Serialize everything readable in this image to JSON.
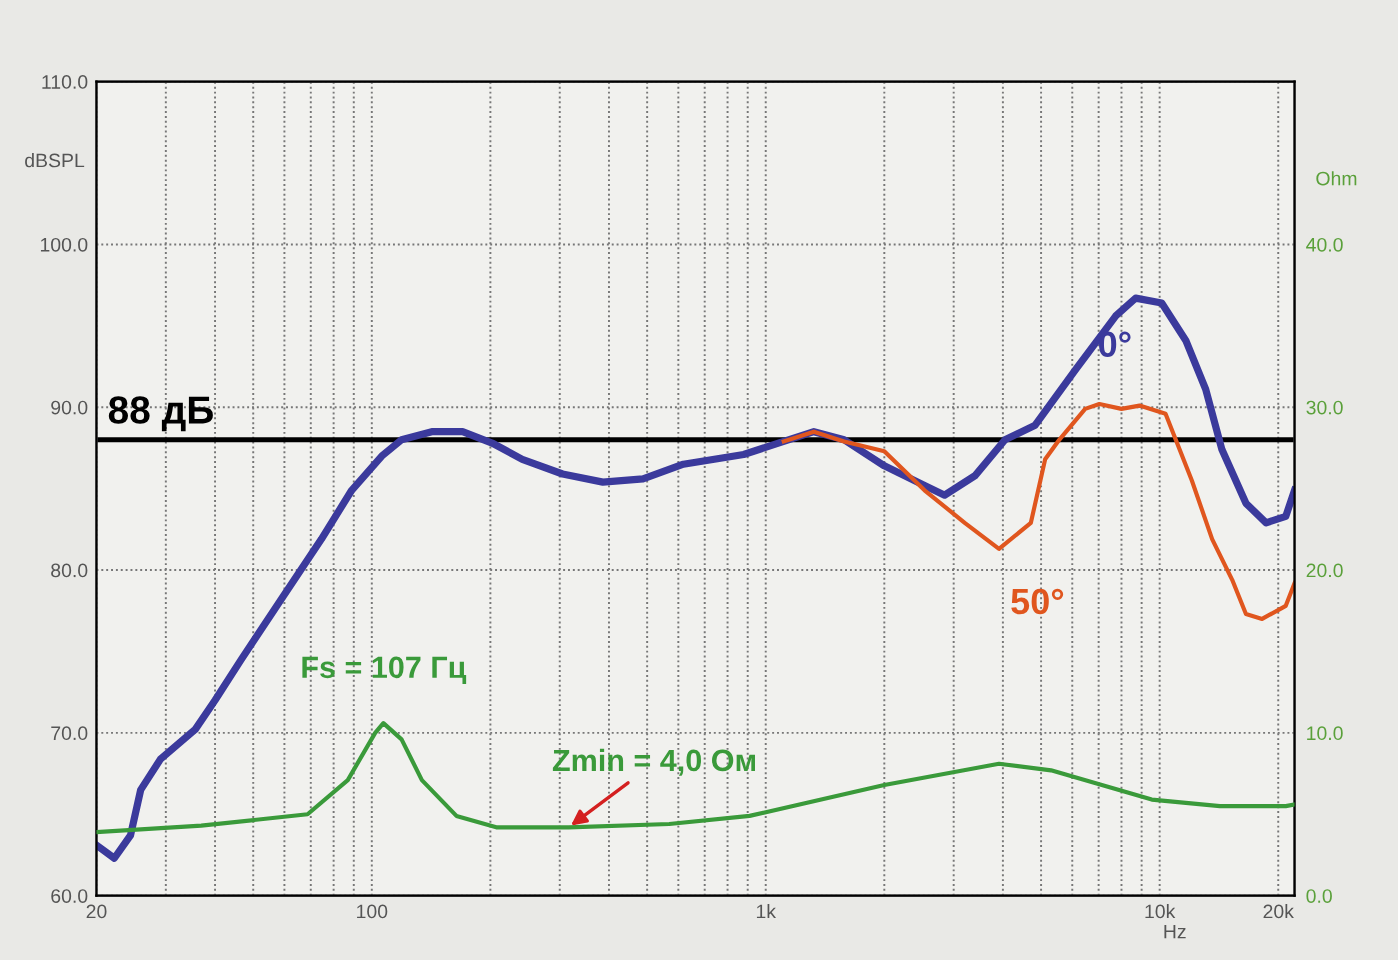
{
  "chart_data": {
    "type": "line",
    "ylabel": "dBSPL",
    "y2label": "Ohm",
    "xlabel": "Hz",
    "log": "x",
    "xlim": [
      20,
      22000
    ],
    "ylim": [
      60,
      110
    ],
    "y2lim": [
      0,
      50
    ],
    "xticks": [
      20,
      {
        "value": 30,
        "label": null
      },
      {
        "value": 40,
        "label": null
      },
      {
        "value": 50,
        "label": null
      },
      {
        "value": 60,
        "label": null
      },
      {
        "value": 70,
        "label": null
      },
      {
        "value": 80,
        "label": null
      },
      {
        "value": 90,
        "label": null
      },
      100,
      {
        "value": 200,
        "label": null
      },
      {
        "value": 300,
        "label": null
      },
      {
        "value": 400,
        "label": null
      },
      {
        "value": 500,
        "label": null
      },
      {
        "value": 600,
        "label": null
      },
      {
        "value": 700,
        "label": null
      },
      {
        "value": 800,
        "label": null
      },
      {
        "value": 900,
        "label": null
      },
      {
        "value": 1000,
        "label": "1k"
      },
      {
        "value": 2000,
        "label": null
      },
      {
        "value": 3000,
        "label": null
      },
      {
        "value": 4000,
        "label": null
      },
      {
        "value": 5000,
        "label": null
      },
      {
        "value": 6000,
        "label": null
      },
      {
        "value": 7000,
        "label": null
      },
      {
        "value": 8000,
        "label": null
      },
      {
        "value": 9000,
        "label": null
      },
      {
        "value": 10000,
        "label": "10k"
      },
      {
        "value": 20000,
        "label": "20k"
      }
    ],
    "yticks": [
      {
        "value": 60,
        "label": "60.0"
      },
      {
        "value": 70,
        "label": "70.0"
      },
      {
        "value": 80,
        "label": "80.0"
      },
      {
        "value": 90,
        "label": "90.0"
      },
      {
        "value": 100,
        "label": "100.0"
      },
      {
        "value": 110,
        "label": "110.0"
      }
    ],
    "y2ticks": [
      {
        "value": 0,
        "label": "0.0"
      },
      {
        "value": 10,
        "label": "10.0"
      },
      {
        "value": 20,
        "label": "20.0"
      },
      {
        "value": 30,
        "label": "30.0"
      },
      {
        "value": 40,
        "label": "40.0"
      }
    ],
    "grid": true,
    "marker": "none",
    "line_style": "solid",
    "series": [
      {
        "name": "0°",
        "color": "#3b3a9c",
        "x": [
          20,
          22.2,
          24.4,
          25.9,
          29.1,
          35.6,
          40,
          46.6,
          58.9,
          74.5,
          88.9,
          106,
          119,
          142,
          170,
          202,
          241,
          305,
          386,
          488,
          618,
          879,
          1111,
          1325,
          1581,
          2000,
          2530,
          2846,
          3400,
          4050,
          4830,
          6110,
          7730,
          8690,
          10120,
          11650,
          13090,
          14390,
          16560,
          18630,
          20900,
          22000
        ],
        "values": [
          63.1,
          62.3,
          63.7,
          66.5,
          68.4,
          70.2,
          72.0,
          74.5,
          78.2,
          81.9,
          84.9,
          87.0,
          88.0,
          88.5,
          88.5,
          87.8,
          86.8,
          85.9,
          85.4,
          85.6,
          86.5,
          87.1,
          87.9,
          88.5,
          88.0,
          86.4,
          85.2,
          84.6,
          85.8,
          88.0,
          88.9,
          92.3,
          95.6,
          96.7,
          96.4,
          94.1,
          91.1,
          87.4,
          84.1,
          82.9,
          83.3,
          84.9
        ]
      },
      {
        "name": "50°",
        "color": "#e0561e",
        "x": [
          1111,
          1325,
          1581,
          2000,
          2530,
          3200,
          3910,
          4710,
          5120,
          5560,
          6470,
          7030,
          8000,
          8890,
          10350,
          12070,
          13590,
          15280,
          16560,
          18200,
          20900,
          22000
        ],
        "values": [
          87.9,
          88.5,
          87.9,
          87.3,
          84.9,
          82.9,
          81.3,
          82.9,
          86.8,
          88.0,
          89.9,
          90.2,
          89.9,
          90.1,
          89.6,
          85.5,
          81.9,
          79.4,
          77.3,
          77.0,
          77.8,
          79.2
        ]
      },
      {
        "color": "#3a9a3a",
        "axis": "y2",
        "x": [
          20,
          36.9,
          68.7,
          86.9,
          102,
          107,
          119,
          134,
          164,
          207,
          316,
          569,
          910,
          2000,
          3910,
          5300,
          9550,
          14220,
          20900,
          22000
        ],
        "values": [
          3.9,
          4.3,
          5.0,
          7.1,
          10.0,
          10.6,
          9.6,
          7.1,
          4.9,
          4.2,
          4.2,
          4.4,
          4.9,
          6.8,
          8.1,
          7.7,
          5.9,
          5.5,
          5.5,
          5.6
        ]
      }
    ],
    "ref_lines": [
      {
        "axis": "y",
        "value": 88,
        "label": "88 дБ",
        "color": "#000000"
      }
    ],
    "annotations": [
      {
        "text": "Fs = 107 Гц",
        "x": 107,
        "y": 70.6
      },
      {
        "text": "Zmin = 4,0 Ом",
        "x": 316,
        "y": 64.2
      }
    ]
  }
}
